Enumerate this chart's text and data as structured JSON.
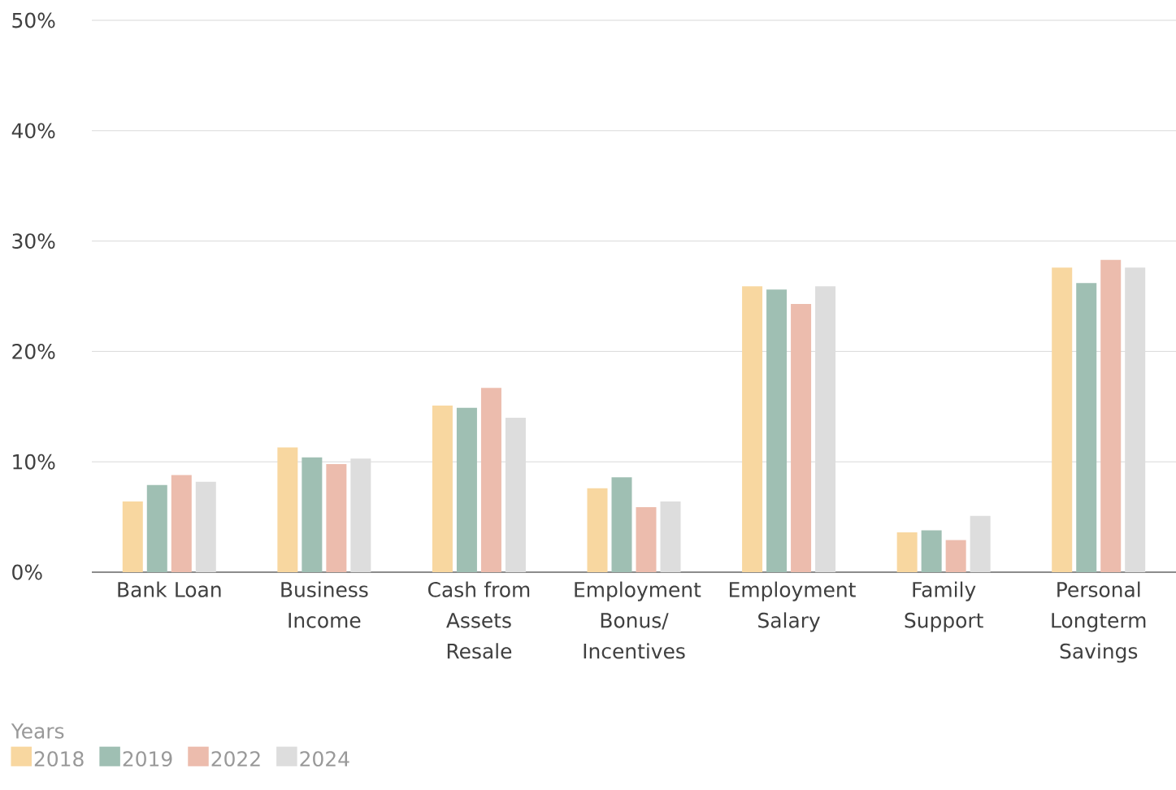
{
  "chart_data": {
    "type": "bar",
    "legend_title": "Years",
    "categories": [
      "Bank Loan",
      "Business Income",
      "Cash from Assets Resale",
      "Employment Bonus/ Incentives",
      "Employment Salary",
      "Family Support",
      "Personal Longterm Savings"
    ],
    "series": [
      {
        "name": "2018",
        "color": "#f8d7a0",
        "values": [
          6.4,
          11.3,
          15.1,
          7.6,
          25.9,
          3.6,
          27.6
        ]
      },
      {
        "name": "2019",
        "color": "#9fbfb3",
        "values": [
          7.9,
          10.4,
          14.9,
          8.6,
          25.6,
          3.8,
          26.2
        ]
      },
      {
        "name": "2022",
        "color": "#ecbcad",
        "values": [
          8.8,
          9.8,
          16.7,
          5.9,
          24.3,
          2.9,
          28.3
        ]
      },
      {
        "name": "2024",
        "color": "#dddddd",
        "values": [
          8.2,
          10.3,
          14.0,
          6.4,
          25.9,
          5.1,
          27.6
        ]
      }
    ],
    "ylim": [
      0,
      50
    ],
    "yticks": [
      {
        "value": 0,
        "label": "0%"
      },
      {
        "value": 10,
        "label": "10%"
      },
      {
        "value": 20,
        "label": "20%"
      },
      {
        "value": 30,
        "label": "30%"
      },
      {
        "value": 40,
        "label": "40%"
      },
      {
        "value": 50,
        "label": "50%"
      }
    ],
    "grid": "y",
    "legend": "bottom left"
  }
}
